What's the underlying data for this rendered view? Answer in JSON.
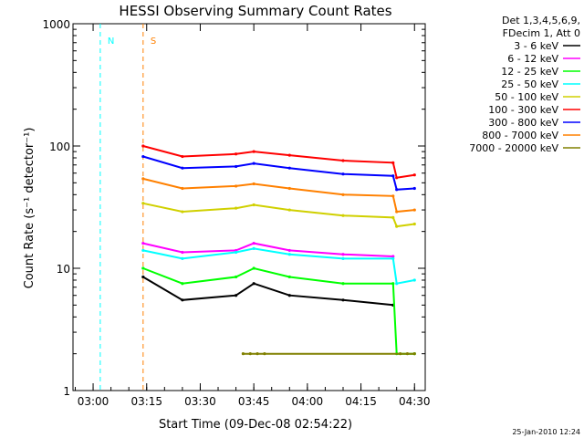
{
  "chart_data": {
    "type": "line",
    "title": "HESSI Observing Summary Count Rates",
    "xlabel": "Start Time (09-Dec-08 02:54:22)",
    "ylabel": "Count Rate (s⁻¹ detector⁻¹)",
    "footer_date": "25-Jan-2010 12:24",
    "y_scale": "log",
    "ylim": [
      1,
      1000
    ],
    "xlim": [
      "02:54:22",
      "04:33:00"
    ],
    "x_ticks": [
      "03:00",
      "03:15",
      "03:30",
      "03:45",
      "04:00",
      "04:15",
      "04:30"
    ],
    "y_ticks": [
      "1",
      "10",
      "100",
      "1000"
    ],
    "legend_header": [
      "Det 1,3,4,5,6,9,",
      "FDecim 1, Att 0"
    ],
    "legend_position": "right",
    "series": [
      {
        "name": "3 - 6 keV",
        "color": "#000000",
        "x": [
          "03:14",
          "03:25",
          "03:40",
          "03:45",
          "03:55",
          "04:10",
          "04:24"
        ],
        "values": [
          8.5,
          5.5,
          6.0,
          7.5,
          6.0,
          5.5,
          5.0
        ]
      },
      {
        "name": "6 - 12 keV",
        "color": "#ff00ff",
        "x": [
          "03:14",
          "03:25",
          "03:40",
          "03:45",
          "03:55",
          "04:10",
          "04:24"
        ],
        "values": [
          16,
          13.5,
          14.0,
          16.0,
          14.0,
          13.0,
          12.5
        ]
      },
      {
        "name": "12 - 25 keV",
        "color": "#00ff00",
        "x": [
          "03:14",
          "03:25",
          "03:40",
          "03:45",
          "03:55",
          "04:10",
          "04:24",
          "04:25",
          "04:30"
        ],
        "values": [
          10,
          7.5,
          8.5,
          10.0,
          8.5,
          7.5,
          7.5,
          2.0,
          2.0
        ]
      },
      {
        "name": "25 - 50 keV",
        "color": "#00ffff",
        "x": [
          "03:14",
          "03:25",
          "03:40",
          "03:45",
          "03:55",
          "04:10",
          "04:24",
          "04:25",
          "04:30"
        ],
        "values": [
          14,
          12,
          13.5,
          14.5,
          13.0,
          12.0,
          12.0,
          7.5,
          8.0
        ]
      },
      {
        "name": "50 - 100 keV",
        "color": "#d0d000",
        "x": [
          "03:14",
          "03:25",
          "03:40",
          "03:45",
          "03:55",
          "04:10",
          "04:24",
          "04:25",
          "04:30"
        ],
        "values": [
          34,
          29,
          31,
          33,
          30,
          27,
          26,
          22,
          23
        ]
      },
      {
        "name": "100 - 300 keV",
        "color": "#ff0000",
        "x": [
          "03:14",
          "03:25",
          "03:40",
          "03:45",
          "03:55",
          "04:10",
          "04:24",
          "04:25",
          "04:30"
        ],
        "values": [
          100,
          82,
          86,
          90,
          84,
          76,
          73,
          55,
          58
        ]
      },
      {
        "name": "300 - 800 keV",
        "color": "#0000ff",
        "x": [
          "03:14",
          "03:25",
          "03:40",
          "03:45",
          "03:55",
          "04:10",
          "04:24",
          "04:25",
          "04:30"
        ],
        "values": [
          82,
          66,
          68,
          72,
          66,
          59,
          57,
          44,
          45
        ]
      },
      {
        "name": "800 - 7000 keV",
        "color": "#ff8000",
        "x": [
          "03:14",
          "03:25",
          "03:40",
          "03:45",
          "03:55",
          "04:10",
          "04:24",
          "04:25",
          "04:30"
        ],
        "values": [
          54,
          45,
          47,
          49,
          45,
          40,
          39,
          29,
          30
        ]
      },
      {
        "name": "7000 - 20000 keV",
        "color": "#808000",
        "x": [
          "03:42",
          "03:44",
          "03:46",
          "03:48",
          "04:26",
          "04:28",
          "04:30"
        ],
        "values": [
          2,
          2,
          2,
          2,
          2,
          2,
          2
        ]
      }
    ],
    "annotations": [
      {
        "label": "N",
        "color": "#00ffff",
        "x": "03:02"
      },
      {
        "label": "S",
        "color": "#ff8000",
        "x": "03:14"
      }
    ]
  }
}
